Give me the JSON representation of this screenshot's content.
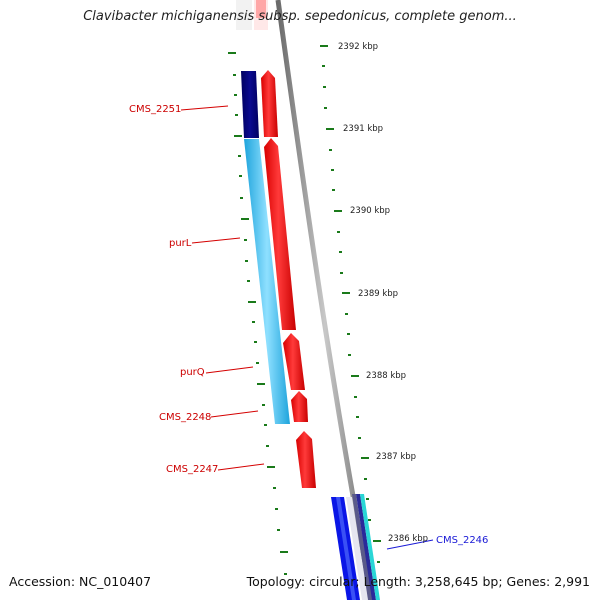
{
  "title": "Clavibacter michiganensis subsp. sepedonicus, complete genom...",
  "scale_labels": [
    "2392 kbp",
    "2391 kbp",
    "2390 kbp",
    "2389 kbp",
    "2388 kbp",
    "2387 kbp",
    "2386 kbp"
  ],
  "genes": [
    {
      "label": "CMS_2251",
      "color": "#cc0000"
    },
    {
      "label": "purL",
      "color": "#cc0000"
    },
    {
      "label": "purQ",
      "color": "#cc0000"
    },
    {
      "label": "CMS_2248",
      "color": "#cc0000"
    },
    {
      "label": "CMS_2247",
      "color": "#cc0000"
    },
    {
      "label": "CMS_2246",
      "color": "#1a1ad6"
    }
  ],
  "colors": {
    "forward_gene": "#e00000",
    "reverse_gene": "#1ea4dc",
    "reverse_gene_dark": "#000080",
    "tick_marks": "#1a7a1a",
    "backbone": "#8a8a8a"
  },
  "footer": {
    "accession": "Accession: NC_010407",
    "summary": "Topology: circular; Length: 3,258,645 bp; Genes: 2,991"
  }
}
